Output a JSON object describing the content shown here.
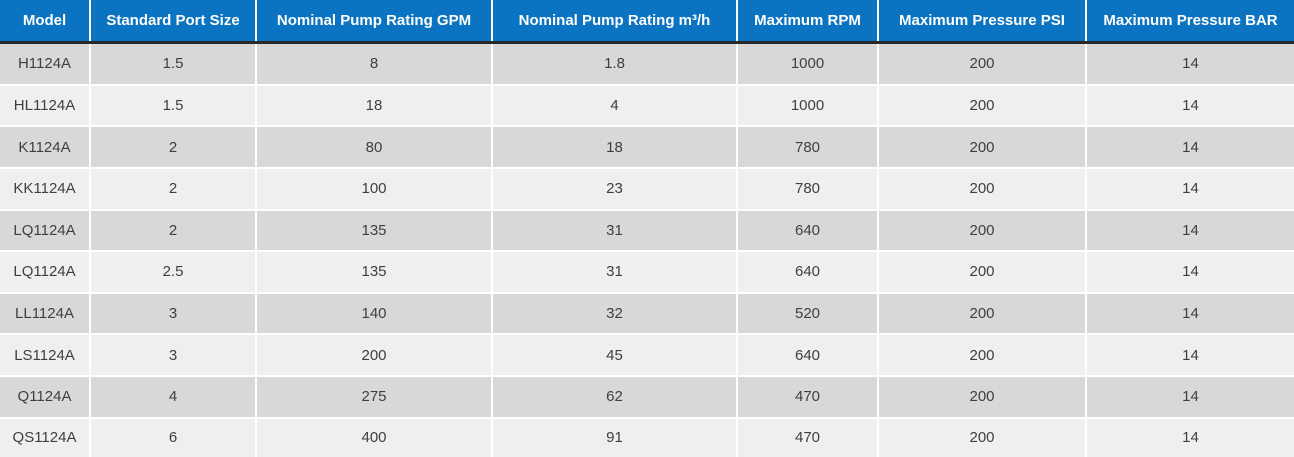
{
  "chart_data": {
    "type": "table",
    "columns": [
      "Model",
      "Standard Port Size",
      "Nominal Pump Rating GPM",
      "Nominal Pump Rating m³/h",
      "Maximum RPM",
      "Maximum Pressure PSI",
      "Maximum Pressure BAR"
    ],
    "rows": [
      [
        "H1124A",
        1.5,
        8,
        1.8,
        1000,
        200,
        14
      ],
      [
        "HL1124A",
        1.5,
        18,
        4,
        1000,
        200,
        14
      ],
      [
        "K1124A",
        2,
        80,
        18,
        780,
        200,
        14
      ],
      [
        "KK1124A",
        2,
        100,
        23,
        780,
        200,
        14
      ],
      [
        "LQ1124A",
        2,
        135,
        31,
        640,
        200,
        14
      ],
      [
        "LQ1124A",
        2.5,
        135,
        31,
        640,
        200,
        14
      ],
      [
        "LL1124A",
        3,
        140,
        32,
        520,
        200,
        14
      ],
      [
        "LS1124A",
        3,
        200,
        45,
        640,
        200,
        14
      ],
      [
        "Q1124A",
        4,
        275,
        62,
        470,
        200,
        14
      ],
      [
        "QS1124A",
        6,
        400,
        91,
        470,
        200,
        14
      ]
    ]
  },
  "colors": {
    "header_bg": "#0b74c2",
    "header_text": "#ffffff",
    "header_border": "#26282a",
    "row_odd": "#d8d8d8",
    "row_even": "#efefef",
    "separator": "#ffffff",
    "cell_text": "#3f3f3f"
  }
}
